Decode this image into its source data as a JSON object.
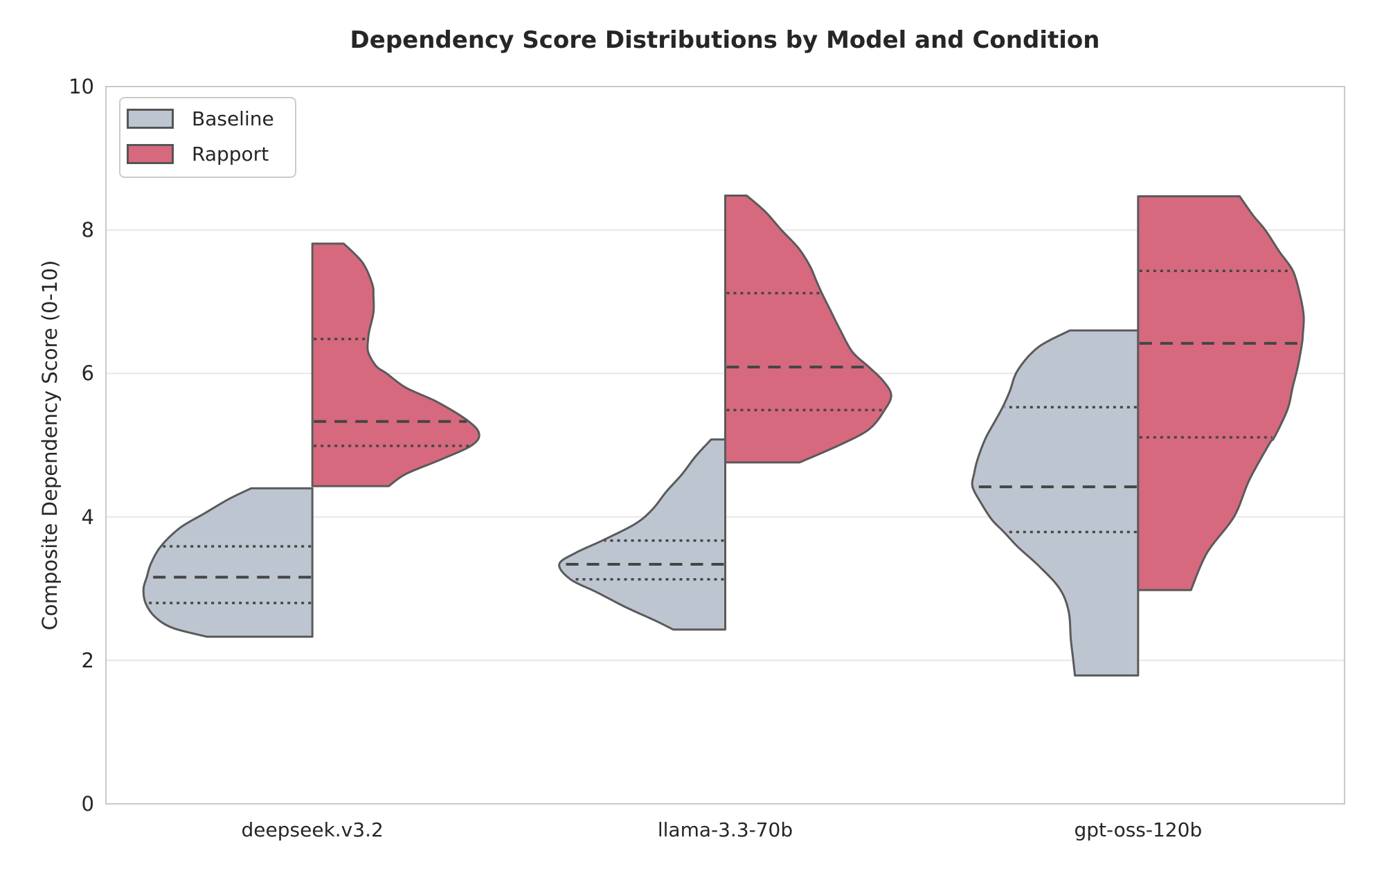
{
  "chart_data": {
    "type": "violin",
    "split": true,
    "title": "Dependency Score Distributions by Model and Condition",
    "ylabel": "Composite Dependency Score (0-10)",
    "ylim": [
      0,
      10
    ],
    "yticks": [
      0,
      2,
      4,
      6,
      8,
      10
    ],
    "grid": "horizontal",
    "legend_position": "upper-left",
    "categories": [
      "deepseek.v3.2",
      "llama-3.3-70b",
      "gpt-oss-120b"
    ],
    "conditions": [
      {
        "name": "Baseline",
        "color": "#bdc6d0",
        "side": "left"
      },
      {
        "name": "Rapport",
        "color": "#d7697f",
        "side": "right"
      }
    ],
    "style": {
      "outline_color": "#5a5a5a",
      "inner_line_color": "#454545",
      "grid_color": "#e6e6e6",
      "spine_color": "#c9c9c9",
      "text_color": "#262626",
      "background": "#ffffff"
    },
    "violins": [
      {
        "model": "deepseek.v3.2",
        "condition": "Baseline",
        "stats": {
          "min": 2.33,
          "q1": 2.8,
          "median": 3.16,
          "q3": 3.59,
          "max": 4.4
        },
        "profile": [
          [
            4.4,
            0.148
          ],
          [
            4.25,
            0.202
          ],
          [
            4.05,
            0.261
          ],
          [
            3.85,
            0.32
          ],
          [
            3.59,
            0.367
          ],
          [
            3.35,
            0.391
          ],
          [
            3.16,
            0.401
          ],
          [
            3.0,
            0.409
          ],
          [
            2.8,
            0.404
          ],
          [
            2.6,
            0.38
          ],
          [
            2.45,
            0.337
          ],
          [
            2.33,
            0.256
          ]
        ]
      },
      {
        "model": "deepseek.v3.2",
        "condition": "Rapport",
        "stats": {
          "min": 4.43,
          "q1": 4.99,
          "median": 5.33,
          "q3": 6.48,
          "max": 7.81
        },
        "profile": [
          [
            7.81,
            0.076
          ],
          [
            7.55,
            0.121
          ],
          [
            7.25,
            0.145
          ],
          [
            7.08,
            0.148
          ],
          [
            6.85,
            0.148
          ],
          [
            6.6,
            0.138
          ],
          [
            6.48,
            0.135
          ],
          [
            6.3,
            0.135
          ],
          [
            6.1,
            0.155
          ],
          [
            6.0,
            0.18
          ],
          [
            5.8,
            0.227
          ],
          [
            5.6,
            0.303
          ],
          [
            5.33,
            0.379
          ],
          [
            5.15,
            0.404
          ],
          [
            4.99,
            0.384
          ],
          [
            4.8,
            0.311
          ],
          [
            4.6,
            0.227
          ],
          [
            4.43,
            0.185
          ]
        ]
      },
      {
        "model": "llama-3.3-70b",
        "condition": "Baseline",
        "stats": {
          "min": 2.43,
          "q1": 3.13,
          "median": 3.34,
          "q3": 3.67,
          "max": 5.08
        },
        "profile": [
          [
            5.08,
            0.034
          ],
          [
            4.85,
            0.071
          ],
          [
            4.6,
            0.104
          ],
          [
            4.35,
            0.143
          ],
          [
            4.1,
            0.177
          ],
          [
            3.9,
            0.219
          ],
          [
            3.67,
            0.298
          ],
          [
            3.5,
            0.362
          ],
          [
            3.34,
            0.402
          ],
          [
            3.13,
            0.375
          ],
          [
            2.95,
            0.311
          ],
          [
            2.75,
            0.244
          ],
          [
            2.55,
            0.168
          ],
          [
            2.43,
            0.126
          ]
        ]
      },
      {
        "model": "llama-3.3-70b",
        "condition": "Rapport",
        "stats": {
          "min": 4.76,
          "q1": 5.49,
          "median": 6.09,
          "q3": 7.12,
          "max": 8.48
        },
        "profile": [
          [
            8.48,
            0.052
          ],
          [
            8.25,
            0.098
          ],
          [
            8.0,
            0.136
          ],
          [
            7.75,
            0.177
          ],
          [
            7.5,
            0.205
          ],
          [
            7.3,
            0.22
          ],
          [
            7.12,
            0.234
          ],
          [
            6.9,
            0.253
          ],
          [
            6.6,
            0.279
          ],
          [
            6.3,
            0.308
          ],
          [
            6.09,
            0.348
          ],
          [
            5.9,
            0.382
          ],
          [
            5.7,
            0.402
          ],
          [
            5.49,
            0.386
          ],
          [
            5.22,
            0.348
          ],
          [
            5.0,
            0.276
          ],
          [
            4.76,
            0.18
          ]
        ]
      },
      {
        "model": "gpt-oss-120b",
        "condition": "Baseline",
        "stats": {
          "min": 1.79,
          "q1": 3.79,
          "median": 4.42,
          "q3": 5.53,
          "max": 6.6
        },
        "profile": [
          [
            6.6,
            0.165
          ],
          [
            6.37,
            0.241
          ],
          [
            6.05,
            0.291
          ],
          [
            5.75,
            0.311
          ],
          [
            5.53,
            0.328
          ],
          [
            5.3,
            0.35
          ],
          [
            5.09,
            0.37
          ],
          [
            4.8,
            0.389
          ],
          [
            4.61,
            0.397
          ],
          [
            4.42,
            0.401
          ],
          [
            4.19,
            0.38
          ],
          [
            3.96,
            0.354
          ],
          [
            3.79,
            0.325
          ],
          [
            3.58,
            0.291
          ],
          [
            3.32,
            0.241
          ],
          [
            3.0,
            0.19
          ],
          [
            2.68,
            0.168
          ],
          [
            2.3,
            0.163
          ],
          [
            2.0,
            0.157
          ],
          [
            1.79,
            0.153
          ]
        ]
      },
      {
        "model": "gpt-oss-120b",
        "condition": "Rapport",
        "stats": {
          "min": 2.98,
          "q1": 5.11,
          "median": 6.42,
          "q3": 7.43,
          "max": 8.47
        },
        "profile": [
          [
            8.47,
            0.246
          ],
          [
            8.2,
            0.279
          ],
          [
            8.0,
            0.308
          ],
          [
            7.7,
            0.342
          ],
          [
            7.43,
            0.375
          ],
          [
            7.1,
            0.392
          ],
          [
            6.8,
            0.401
          ],
          [
            6.55,
            0.399
          ],
          [
            6.42,
            0.397
          ],
          [
            6.1,
            0.387
          ],
          [
            5.8,
            0.374
          ],
          [
            5.5,
            0.362
          ],
          [
            5.11,
            0.33
          ],
          [
            5.02,
            0.318
          ],
          [
            4.51,
            0.269
          ],
          [
            4.0,
            0.232
          ],
          [
            3.5,
            0.167
          ],
          [
            2.98,
            0.128
          ]
        ]
      }
    ]
  }
}
